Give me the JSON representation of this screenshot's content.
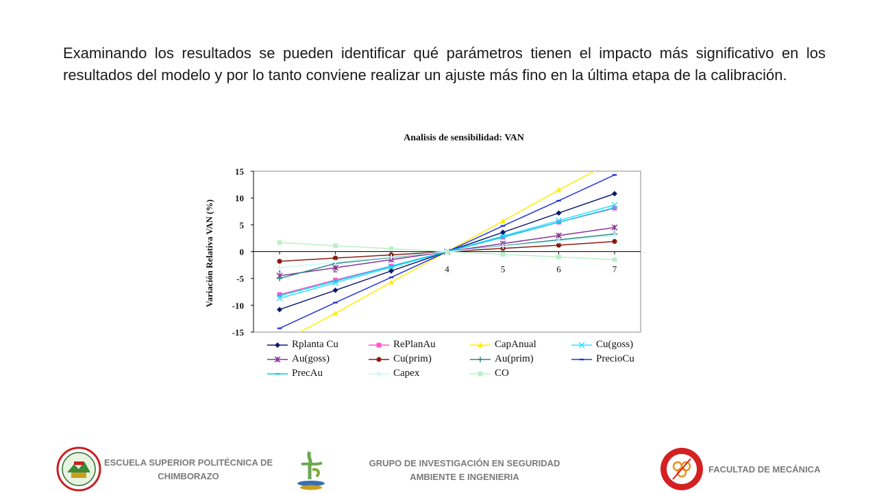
{
  "slide": {
    "intro_text": "Examinando los resultados se pueden identificar qué parámetros tienen el impacto más significativo en los resultados del modelo y por lo tanto conviene realizar un ajuste más fino en la última etapa de la calibración."
  },
  "chart_data": {
    "type": "line",
    "title": "Analisis de sensibilidad: VAN",
    "ylabel": "Variación Relativa VAN (%)",
    "xlabel": "",
    "x": [
      1,
      2,
      3,
      4,
      5,
      6,
      7
    ],
    "ylim": [
      -15,
      15
    ],
    "yticks": [
      15,
      10,
      5,
      0,
      -5,
      -10,
      -15
    ],
    "xlim": [
      1,
      7
    ],
    "grid": false,
    "legend_position": "bottom",
    "series": [
      {
        "name": "Rplanta Cu",
        "color": "#0a1a6e",
        "marker": "diamond",
        "values": [
          -10.8,
          -7.2,
          -3.6,
          0,
          3.6,
          7.2,
          10.8
        ]
      },
      {
        "name": "RePlanAu",
        "color": "#ff55cc",
        "marker": "square",
        "values": [
          -8.0,
          -5.3,
          -2.7,
          0,
          2.7,
          5.5,
          8.1
        ]
      },
      {
        "name": "CapAnual",
        "color": "#ffee00",
        "marker": "triangle",
        "values": [
          -17.0,
          -11.5,
          -5.7,
          0,
          5.7,
          11.5,
          17.0
        ]
      },
      {
        "name": "Cu(goss)",
        "color": "#33ddff",
        "marker": "x",
        "values": [
          -8.7,
          -5.8,
          -2.9,
          0,
          2.9,
          5.8,
          8.7
        ]
      },
      {
        "name": "Au(goss)",
        "color": "#883399",
        "marker": "star",
        "values": [
          -4.5,
          -3.0,
          -1.5,
          0,
          1.5,
          3.0,
          4.5
        ]
      },
      {
        "name": "Cu(prim)",
        "color": "#8b1a10",
        "marker": "circle",
        "values": [
          -1.8,
          -1.2,
          -0.6,
          0,
          0.6,
          1.2,
          1.9
        ]
      },
      {
        "name": "Au(prim)",
        "color": "#2a8a80",
        "marker": "plus",
        "values": [
          -5.0,
          -2.2,
          -1.1,
          0,
          1.1,
          2.2,
          3.3
        ]
      },
      {
        "name": "PrecioCu",
        "color": "#2233dd",
        "marker": "dash",
        "values": [
          -14.3,
          -9.5,
          -4.8,
          0,
          4.8,
          9.5,
          14.3
        ]
      },
      {
        "name": "PrecAu",
        "color": "#00ccee",
        "marker": "dash",
        "values": [
          -8.2,
          -5.5,
          -2.7,
          0,
          2.7,
          5.5,
          8.2
        ]
      },
      {
        "name": "Capex",
        "color": "#ccf5ff",
        "marker": "cross",
        "values": [
          -3.0,
          -2.0,
          -1.0,
          0,
          1.0,
          2.0,
          3.0
        ]
      },
      {
        "name": "CO",
        "color": "#bbf0c8",
        "marker": "square",
        "values": [
          1.7,
          1.1,
          0.55,
          0,
          -0.5,
          -1.0,
          -1.5
        ]
      }
    ]
  },
  "footer": {
    "espoch_line1": "ESCUELA SUPERIOR POLITÉCNICA DE",
    "espoch_line2": "CHIMBORAZO",
    "group_line1": "GRUPO DE INVESTIGACIÓN EN SEGURIDAD",
    "group_line2": "AMBIENTE E INGENIERIA",
    "faculty": "FACULTAD DE MECÁNICA"
  }
}
